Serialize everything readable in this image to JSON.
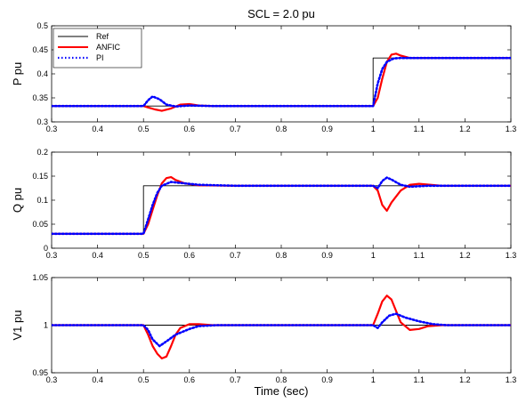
{
  "chart_data": [
    {
      "type": "line",
      "title": "SCL = 2.0 pu",
      "xlabel": "",
      "ylabel": "P pu",
      "xlim": [
        0.3,
        1.3
      ],
      "ylim": [
        0.3,
        0.5
      ],
      "xticks": [
        "0.3",
        "0.4",
        "0.5",
        "0.6",
        "0.7",
        "0.8",
        "0.9",
        "1",
        "1.1",
        "1.2",
        "1.3"
      ],
      "yticks": [
        "0.3",
        "0.35",
        "0.4",
        "0.45",
        "0.5"
      ],
      "legend": {
        "placement": "top-left",
        "entries": [
          "Ref",
          "ANFIC",
          "PI"
        ]
      },
      "series": [
        {
          "name": "Ref",
          "color": "#000000",
          "style": "solid",
          "x": [
            0.3,
            1.0,
            1.0,
            1.3
          ],
          "y": [
            0.333,
            0.333,
            0.433,
            0.433
          ]
        },
        {
          "name": "ANFIC",
          "color": "#ff0000",
          "style": "solid",
          "x": [
            0.3,
            0.5,
            0.51,
            0.525,
            0.54,
            0.56,
            0.58,
            0.6,
            0.62,
            0.65,
            1.0,
            1.01,
            1.02,
            1.03,
            1.04,
            1.05,
            1.06,
            1.08,
            1.1,
            1.3
          ],
          "y": [
            0.333,
            0.333,
            0.33,
            0.326,
            0.323,
            0.328,
            0.336,
            0.337,
            0.334,
            0.333,
            0.333,
            0.35,
            0.39,
            0.425,
            0.44,
            0.442,
            0.438,
            0.433,
            0.433,
            0.433
          ]
        },
        {
          "name": "PI",
          "color": "#0000ff",
          "style": "dotted",
          "x": [
            0.3,
            0.5,
            0.51,
            0.52,
            0.535,
            0.55,
            0.57,
            0.6,
            0.65,
            1.0,
            1.01,
            1.02,
            1.03,
            1.045,
            1.06,
            1.08,
            1.1,
            1.3
          ],
          "y": [
            0.333,
            0.333,
            0.345,
            0.353,
            0.347,
            0.336,
            0.332,
            0.334,
            0.333,
            0.333,
            0.38,
            0.41,
            0.425,
            0.432,
            0.433,
            0.433,
            0.433,
            0.433
          ]
        }
      ]
    },
    {
      "type": "line",
      "title": "",
      "xlabel": "",
      "ylabel": "Q pu",
      "xlim": [
        0.3,
        1.3
      ],
      "ylim": [
        0,
        0.2
      ],
      "xticks": [
        "0.3",
        "0.4",
        "0.5",
        "0.6",
        "0.7",
        "0.8",
        "0.9",
        "1",
        "1.1",
        "1.2",
        "1.3"
      ],
      "yticks": [
        "0",
        "0.05",
        "0.1",
        "0.15",
        "0.2"
      ],
      "series": [
        {
          "name": "Ref",
          "color": "#000000",
          "style": "solid",
          "x": [
            0.3,
            0.5,
            0.5,
            1.3
          ],
          "y": [
            0.03,
            0.03,
            0.13,
            0.13
          ]
        },
        {
          "name": "ANFIC",
          "color": "#ff0000",
          "style": "solid",
          "x": [
            0.3,
            0.5,
            0.51,
            0.52,
            0.53,
            0.54,
            0.55,
            0.56,
            0.57,
            0.59,
            0.62,
            0.7,
            1.0,
            1.01,
            1.02,
            1.03,
            1.04,
            1.06,
            1.08,
            1.1,
            1.15,
            1.3
          ],
          "y": [
            0.03,
            0.03,
            0.05,
            0.08,
            0.11,
            0.135,
            0.146,
            0.148,
            0.142,
            0.135,
            0.131,
            0.13,
            0.13,
            0.12,
            0.09,
            0.078,
            0.095,
            0.12,
            0.132,
            0.134,
            0.13,
            0.13
          ]
        },
        {
          "name": "PI",
          "color": "#0000ff",
          "style": "dotted",
          "x": [
            0.3,
            0.5,
            0.51,
            0.52,
            0.53,
            0.54,
            0.56,
            0.58,
            0.62,
            0.7,
            1.0,
            1.01,
            1.02,
            1.03,
            1.04,
            1.06,
            1.08,
            1.12,
            1.3
          ],
          "y": [
            0.03,
            0.03,
            0.06,
            0.09,
            0.115,
            0.13,
            0.138,
            0.136,
            0.132,
            0.13,
            0.13,
            0.125,
            0.14,
            0.147,
            0.143,
            0.132,
            0.128,
            0.13,
            0.13
          ]
        }
      ]
    },
    {
      "type": "line",
      "title": "",
      "xlabel": "Time (sec)",
      "ylabel": "V1 pu",
      "xlim": [
        0.3,
        1.3
      ],
      "ylim": [
        0.95,
        1.05
      ],
      "xticks": [
        "0.3",
        "0.4",
        "0.5",
        "0.6",
        "0.7",
        "0.8",
        "0.9",
        "1",
        "1.1",
        "1.2",
        "1.3"
      ],
      "yticks": [
        "0.95",
        "1",
        "1.05"
      ],
      "series": [
        {
          "name": "Ref",
          "color": "#000000",
          "style": "solid",
          "x": [
            0.3,
            1.3
          ],
          "y": [
            1.0,
            1.0
          ]
        },
        {
          "name": "ANFIC",
          "color": "#ff0000",
          "style": "solid",
          "x": [
            0.3,
            0.5,
            0.51,
            0.52,
            0.53,
            0.54,
            0.55,
            0.56,
            0.57,
            0.58,
            0.6,
            0.62,
            0.65,
            1.0,
            1.01,
            1.02,
            1.03,
            1.04,
            1.05,
            1.06,
            1.08,
            1.1,
            1.12,
            1.15,
            1.3
          ],
          "y": [
            1.0,
            1.0,
            0.99,
            0.978,
            0.97,
            0.965,
            0.967,
            0.978,
            0.99,
            0.997,
            1.001,
            1.001,
            1.0,
            1.0,
            1.012,
            1.025,
            1.031,
            1.027,
            1.015,
            1.003,
            0.995,
            0.996,
            0.999,
            1.0,
            1.0
          ]
        },
        {
          "name": "PI",
          "color": "#0000ff",
          "style": "dotted",
          "x": [
            0.3,
            0.5,
            0.51,
            0.52,
            0.535,
            0.55,
            0.57,
            0.6,
            0.62,
            0.66,
            1.0,
            1.01,
            1.02,
            1.035,
            1.05,
            1.07,
            1.1,
            1.13,
            1.16,
            1.3
          ],
          "y": [
            1.0,
            1.0,
            0.995,
            0.985,
            0.978,
            0.983,
            0.99,
            0.996,
            0.999,
            1.0,
            1.0,
            0.997,
            1.003,
            1.01,
            1.012,
            1.008,
            1.004,
            1.001,
            1.0,
            1.0
          ]
        }
      ]
    }
  ]
}
